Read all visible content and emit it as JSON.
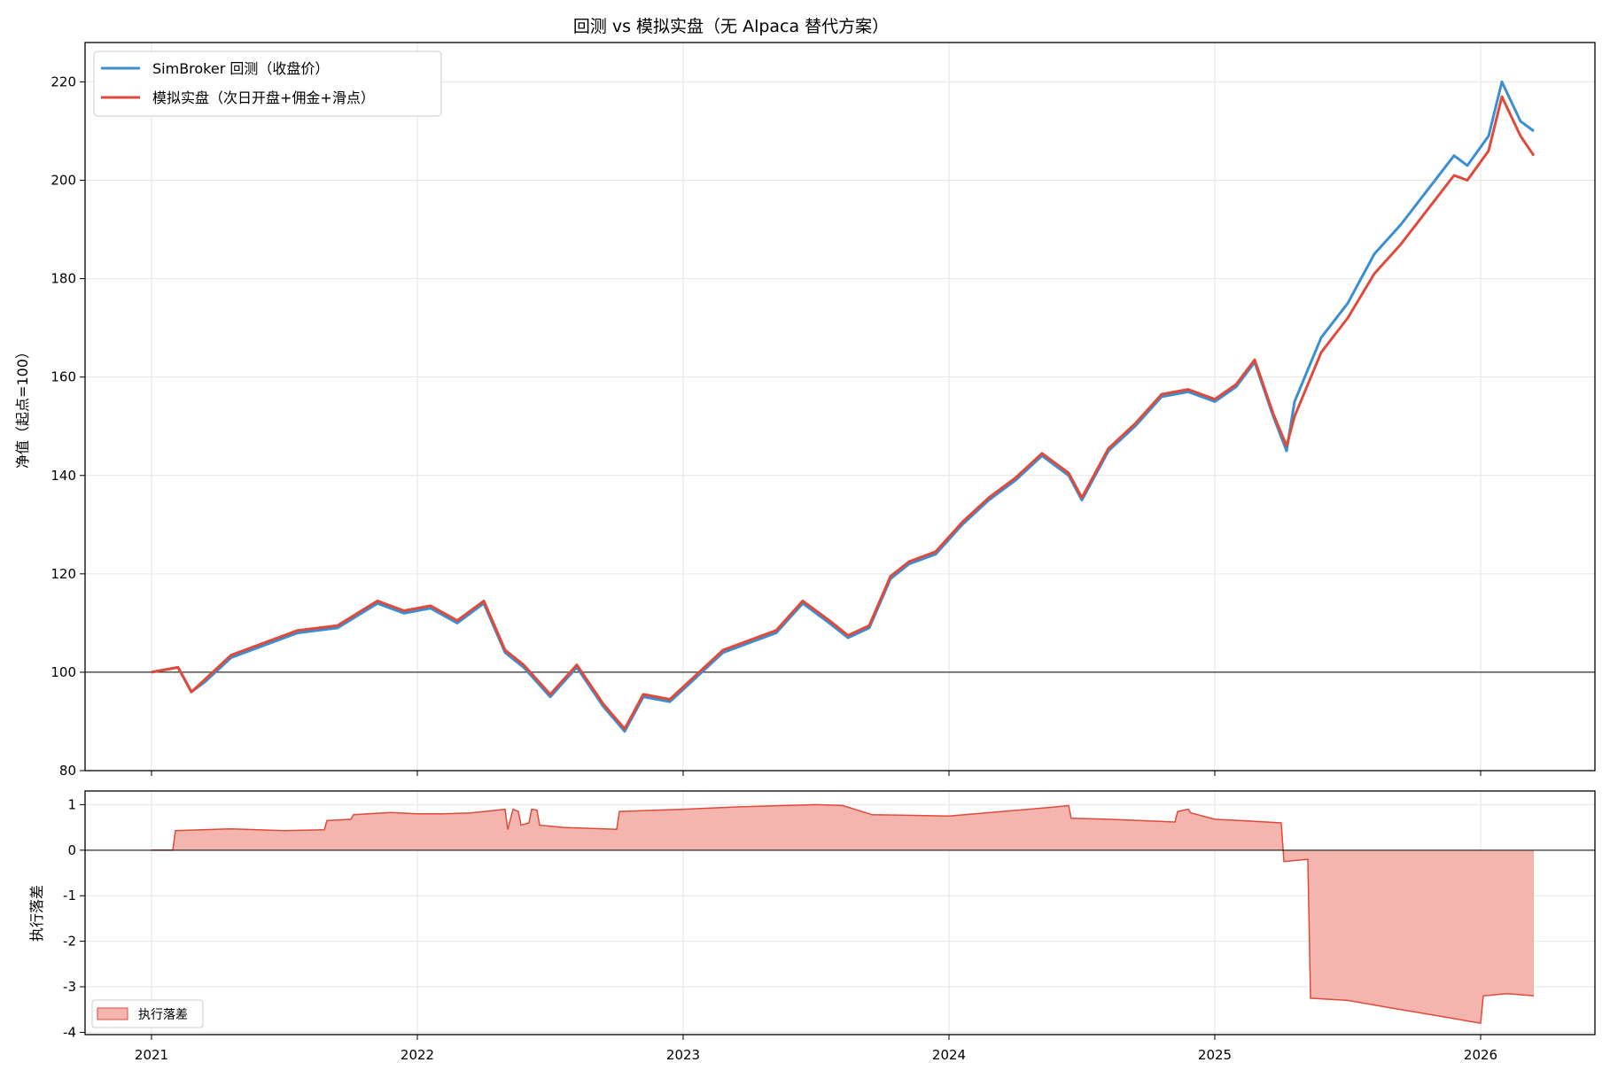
{
  "chart_data": [
    {
      "type": "line",
      "title": "回测 vs 模拟实盘（无 Alpaca 替代方案）",
      "xlabel": "",
      "ylabel": "净值（起点=100）",
      "xlim": [
        2020.75,
        2026.43
      ],
      "ylim": [
        80,
        228
      ],
      "x_ticks": [
        "2021",
        "2022",
        "2023",
        "2024",
        "2025",
        "2026"
      ],
      "y_ticks": [
        "80",
        "100",
        "120",
        "140",
        "160",
        "180",
        "200",
        "220"
      ],
      "grid": true,
      "legend_position": "top-left",
      "reference_line": 100,
      "x": [
        2021.0,
        2021.1,
        2021.15,
        2021.2,
        2021.3,
        2021.45,
        2021.55,
        2021.7,
        2021.85,
        2021.95,
        2022.05,
        2022.15,
        2022.25,
        2022.33,
        2022.4,
        2022.5,
        2022.6,
        2022.7,
        2022.78,
        2022.85,
        2022.95,
        2023.05,
        2023.15,
        2023.25,
        2023.35,
        2023.45,
        2023.55,
        2023.62,
        2023.7,
        2023.78,
        2023.85,
        2023.95,
        2024.05,
        2024.15,
        2024.25,
        2024.35,
        2024.45,
        2024.5,
        2024.6,
        2024.7,
        2024.8,
        2024.9,
        2025.0,
        2025.08,
        2025.15,
        2025.22,
        2025.27,
        2025.3,
        2025.4,
        2025.5,
        2025.6,
        2025.7,
        2025.8,
        2025.9,
        2025.95,
        2026.03,
        2026.08,
        2026.15,
        2026.2
      ],
      "series": [
        {
          "name": "SimBroker 回测（收盘价）",
          "color": "#3a8fd3",
          "values": [
            100,
            101,
            96,
            98,
            103,
            106,
            108,
            109,
            114,
            112,
            113,
            110,
            114,
            104,
            101,
            95,
            101,
            93,
            88,
            95,
            94,
            99,
            104,
            106,
            108,
            114,
            110,
            107,
            109,
            119,
            122,
            124,
            130,
            135,
            139,
            144,
            140,
            135,
            145,
            150,
            156,
            157,
            155,
            158,
            163,
            152,
            145,
            155,
            168,
            175,
            185,
            191,
            198,
            205,
            203,
            209,
            220,
            212,
            210
          ]
        },
        {
          "name": "模拟实盘（次日开盘+佣金+滑点）",
          "color": "#e04a3b",
          "values": [
            100,
            101,
            96,
            98.5,
            103.5,
            106.5,
            108.5,
            109.5,
            114.5,
            112.5,
            113.5,
            110.5,
            114.5,
            104.5,
            101.5,
            95.5,
            101.5,
            93.5,
            88.5,
            95.5,
            94.5,
            99.5,
            104.5,
            106.5,
            108.5,
            114.5,
            110.5,
            107.5,
            109.5,
            119.5,
            122.5,
            124.5,
            130.5,
            135.5,
            139.5,
            144.5,
            140.5,
            135.5,
            145.5,
            150.5,
            156.5,
            157.5,
            155.5,
            158.5,
            163.5,
            152.5,
            146,
            152,
            165,
            172,
            181,
            187,
            194,
            201,
            200,
            206,
            217,
            209,
            205
          ]
        }
      ]
    },
    {
      "type": "area",
      "title": "",
      "xlabel": "",
      "ylabel": "执行落差",
      "xlim": [
        2020.75,
        2026.43
      ],
      "ylim": [
        -4.05,
        1.3
      ],
      "x_ticks": [
        "2021",
        "2022",
        "2023",
        "2024",
        "2025",
        "2026"
      ],
      "y_ticks": [
        "1",
        "0",
        "-1",
        "-2",
        "-3",
        "-4"
      ],
      "grid": true,
      "legend_position": "bottom-left",
      "reference_line": 0,
      "x": [
        2021.0,
        2021.08,
        2021.09,
        2021.3,
        2021.5,
        2021.65,
        2021.66,
        2021.75,
        2021.76,
        2021.9,
        2022.0,
        2022.1,
        2022.2,
        2022.3,
        2022.33,
        2022.34,
        2022.36,
        2022.38,
        2022.39,
        2022.42,
        2022.43,
        2022.45,
        2022.46,
        2022.55,
        2022.75,
        2022.76,
        2023.0,
        2023.2,
        2023.5,
        2023.6,
        2023.7,
        2023.71,
        2024.0,
        2024.2,
        2024.4,
        2024.45,
        2024.46,
        2024.6,
        2024.85,
        2024.86,
        2024.9,
        2024.91,
        2025.0,
        2025.1,
        2025.25,
        2025.26,
        2025.35,
        2025.36,
        2025.5,
        2025.65,
        2025.85,
        2025.95,
        2026.0,
        2026.01,
        2026.1,
        2026.2
      ],
      "series": [
        {
          "name": "执行落差",
          "color": "#e04a3b",
          "fill": "#f4b5ae",
          "values": [
            0,
            0,
            0.43,
            0.47,
            0.43,
            0.45,
            0.65,
            0.68,
            0.78,
            0.83,
            0.8,
            0.8,
            0.82,
            0.88,
            0.9,
            0.45,
            0.9,
            0.85,
            0.55,
            0.6,
            0.9,
            0.88,
            0.55,
            0.5,
            0.46,
            0.85,
            0.9,
            0.95,
            1.0,
            0.98,
            0.8,
            0.78,
            0.75,
            0.85,
            0.95,
            0.98,
            0.7,
            0.68,
            0.62,
            0.85,
            0.9,
            0.82,
            0.68,
            0.65,
            0.6,
            -0.25,
            -0.2,
            -3.25,
            -3.3,
            -3.45,
            -3.65,
            -3.75,
            -3.8,
            -3.2,
            -3.15,
            -3.2
          ]
        }
      ]
    }
  ]
}
